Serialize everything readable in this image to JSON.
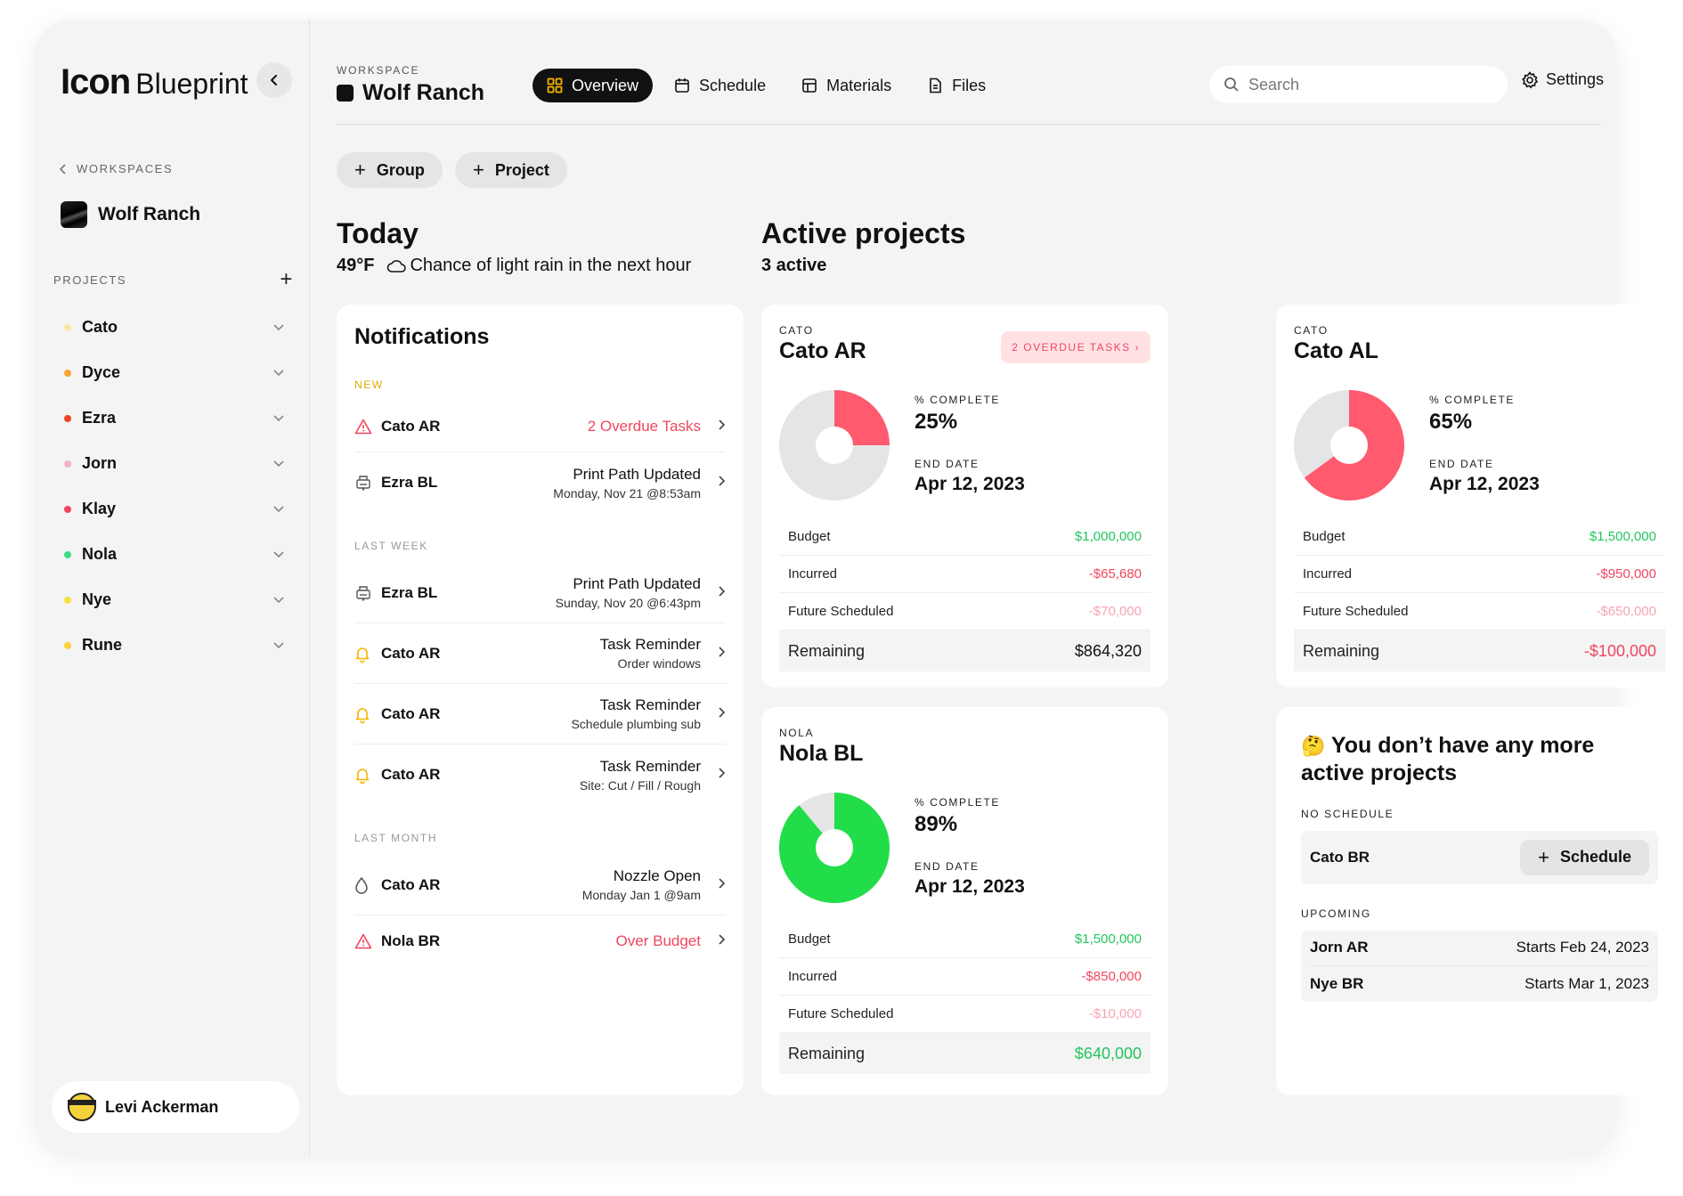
{
  "brand": {
    "logo": "Icon",
    "name": "Blueprint"
  },
  "sidebar": {
    "back_label": "WORKSPACES",
    "workspace_name": "Wolf Ranch",
    "projects_label": "PROJECTS",
    "projects": [
      {
        "name": "Cato",
        "color": "#f6e7a4"
      },
      {
        "name": "Dyce",
        "color": "#f7a531"
      },
      {
        "name": "Ezra",
        "color": "#ef4423"
      },
      {
        "name": "Jorn",
        "color": "#f4b3c0"
      },
      {
        "name": "Klay",
        "color": "#f0465e"
      },
      {
        "name": "Nola",
        "color": "#3ddc84"
      },
      {
        "name": "Nye",
        "color": "#f5e142"
      },
      {
        "name": "Rune",
        "color": "#f8d339"
      }
    ],
    "user": {
      "name": "Levi Ackerman"
    }
  },
  "header": {
    "workspace_label": "WORKSPACE",
    "workspace_title": "Wolf Ranch",
    "tabs": [
      {
        "label": "Overview",
        "icon": "grid-icon",
        "active": true
      },
      {
        "label": "Schedule",
        "icon": "calendar-icon",
        "active": false
      },
      {
        "label": "Materials",
        "icon": "layout-icon",
        "active": false
      },
      {
        "label": "Files",
        "icon": "file-icon",
        "active": false
      }
    ],
    "search_placeholder": "Search",
    "settings_label": "Settings"
  },
  "actions": {
    "group_label": "Group",
    "project_label": "Project"
  },
  "today": {
    "title": "Today",
    "temperature": "49°F",
    "forecast": "Chance of light rain in the next hour"
  },
  "active": {
    "title": "Active projects",
    "count_text": "3 active"
  },
  "notifications": {
    "title": "Notifications",
    "sections": {
      "new": "NEW",
      "last_week": "LAST WEEK",
      "last_month": "LAST MONTH"
    },
    "new_items": [
      {
        "icon": "warning-icon",
        "project": "Cato AR",
        "main": "2 Overdue Tasks",
        "sub": "",
        "alert": true
      },
      {
        "icon": "print-icon",
        "project": "Ezra BL",
        "main": "Print Path Updated",
        "sub": "Monday, Nov 21 @8:53am",
        "alert": false
      }
    ],
    "last_week_items": [
      {
        "icon": "print-icon",
        "project": "Ezra BL",
        "main": "Print Path Updated",
        "sub": "Sunday, Nov 20 @6:43pm",
        "alert": false
      },
      {
        "icon": "bell-icon",
        "project": "Cato AR",
        "main": "Task Reminder",
        "sub": "Order windows",
        "alert": false
      },
      {
        "icon": "bell-icon",
        "project": "Cato AR",
        "main": "Task Reminder",
        "sub": "Schedule plumbing sub",
        "alert": false
      },
      {
        "icon": "bell-icon",
        "project": "Cato AR",
        "main": "Task Reminder",
        "sub": "Site: Cut / Fill / Rough",
        "alert": false
      }
    ],
    "last_month_items": [
      {
        "icon": "drop-icon",
        "project": "Cato AR",
        "main": "Nozzle Open",
        "sub": "Monday Jan 1 @9am",
        "alert": false
      },
      {
        "icon": "warning-icon",
        "project": "Nola BR",
        "main": "Over Budget",
        "sub": "",
        "alert": true
      }
    ]
  },
  "projects": [
    {
      "group": "CATO",
      "name": "Cato AR",
      "badge": "2 OVERDUE TASKS ›",
      "complete_label": "% COMPLETE",
      "complete": "25%",
      "complete_fraction": 0.25,
      "pie_color": "#ff5a6e",
      "end_label": "END DATE",
      "end_date": "Apr 12, 2023",
      "budget_label": "Budget",
      "budget": "$1,000,000",
      "incurred_label": "Incurred",
      "incurred": "-$65,680",
      "future_label": "Future Scheduled",
      "future": "-$70,000",
      "remaining_label": "Remaining",
      "remaining": "$864,320",
      "remaining_status": "black"
    },
    {
      "group": "CATO",
      "name": "Cato AL",
      "badge": "",
      "complete_label": "% COMPLETE",
      "complete": "65%",
      "complete_fraction": 0.65,
      "pie_color": "#ff5a6e",
      "end_label": "END DATE",
      "end_date": "Apr 12, 2023",
      "budget_label": "Budget",
      "budget": "$1,500,000",
      "incurred_label": "Incurred",
      "incurred": "-$950,000",
      "future_label": "Future Scheduled",
      "future": "-$650,000",
      "remaining_label": "Remaining",
      "remaining": "-$100,000",
      "remaining_status": "red"
    },
    {
      "group": "NOLA",
      "name": "Nola BL",
      "badge": "",
      "complete_label": "% COMPLETE",
      "complete": "89%",
      "complete_fraction": 0.89,
      "pie_color": "#22dd4a",
      "end_label": "END DATE",
      "end_date": "Apr 12, 2023",
      "budget_label": "Budget",
      "budget": "$1,500,000",
      "incurred_label": "Incurred",
      "incurred": "-$850,000",
      "future_label": "Future Scheduled",
      "future": "-$10,000",
      "remaining_label": "Remaining",
      "remaining": "$640,000",
      "remaining_status": "green"
    }
  ],
  "empty": {
    "emoji": "🤔",
    "title": "You don’t have any more active projects",
    "no_schedule_label": "NO SCHEDULE",
    "no_schedule_project": "Cato BR",
    "schedule_button": "Schedule",
    "upcoming_label": "UPCOMING",
    "upcoming": [
      {
        "name": "Jorn AR",
        "when": "Starts Feb 24, 2023"
      },
      {
        "name": "Nye BR",
        "when": "Starts Mar 1, 2023"
      }
    ]
  }
}
